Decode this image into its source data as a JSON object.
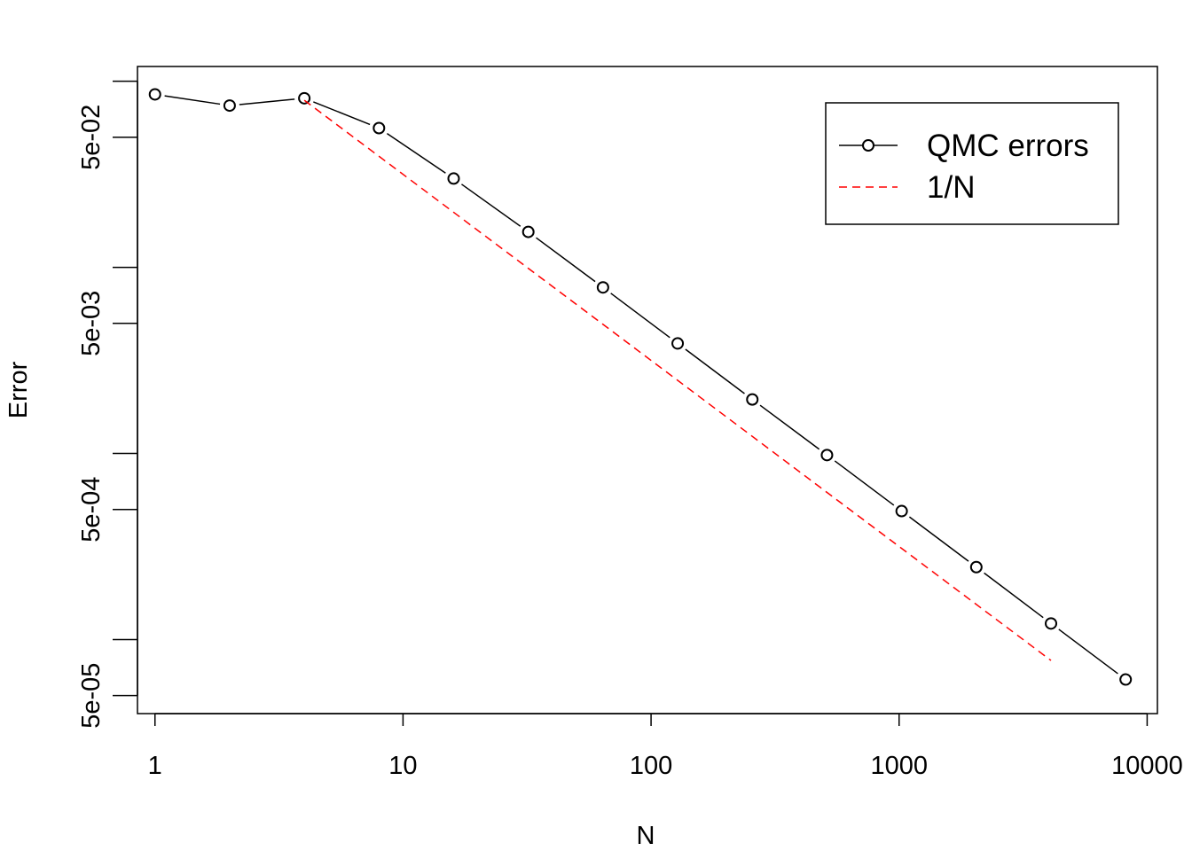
{
  "chart_data": {
    "type": "line",
    "title": "",
    "xlabel": "N",
    "ylabel": "Error",
    "x_scale": "log",
    "y_scale": "log",
    "xlim": [
      0.85,
      11000
    ],
    "ylim": [
      4e-05,
      0.12
    ],
    "x_ticks": [
      1,
      10,
      100,
      1000,
      10000
    ],
    "x_tick_labels": [
      "1",
      "10",
      "100",
      "1000",
      "10000"
    ],
    "y_ticks": [
      5e-05,
      0.0001,
      0.0005,
      0.001,
      0.005,
      0.01,
      0.05,
      0.1
    ],
    "y_tick_labels": [
      "5e-05",
      "",
      "5e-04",
      "",
      "5e-03",
      "",
      "5e-02",
      ""
    ],
    "grid": false,
    "legend_position": "top-right",
    "series": [
      {
        "name": "QMC errors",
        "style": "line-with-open-circles",
        "color": "#000000",
        "x": [
          1,
          2,
          4,
          8,
          16,
          32,
          64,
          128,
          256,
          512,
          1024,
          2048,
          4096,
          8192
        ],
        "y": [
          0.085,
          0.074,
          0.081,
          0.056,
          0.03,
          0.0155,
          0.0078,
          0.0039,
          0.00195,
          0.00098,
          0.00049,
          0.000245,
          0.000122,
          6.1e-05
        ]
      },
      {
        "name": "1/N",
        "style": "dashed",
        "color": "#ff0000",
        "x": [
          4,
          4096
        ],
        "y": [
          0.079,
          7.72e-05
        ]
      }
    ]
  }
}
